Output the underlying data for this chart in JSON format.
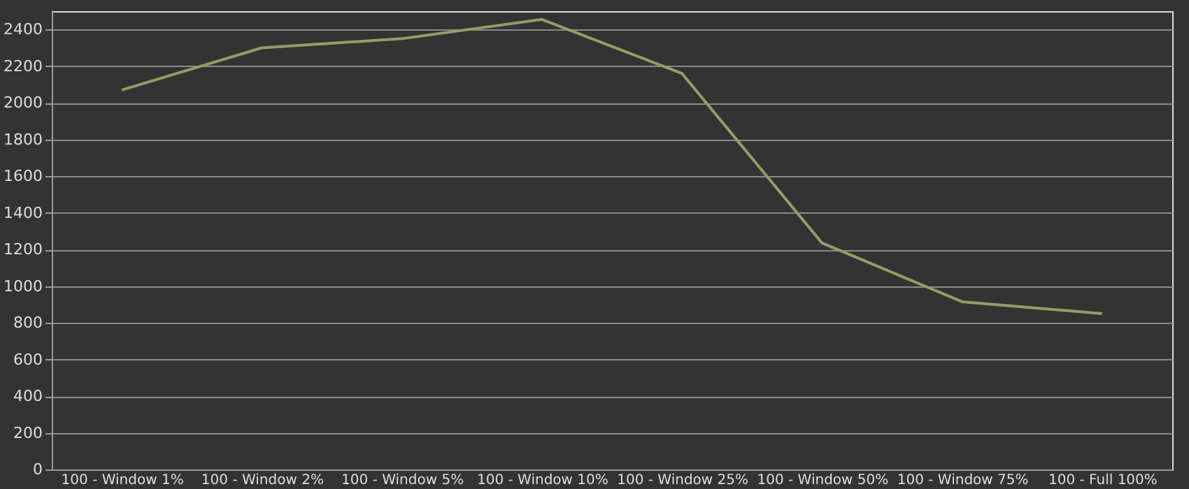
{
  "chart_data": {
    "type": "line",
    "categories": [
      "100 - Window  1%",
      "100 - Window  2%",
      "100 - Window  5%",
      "100 - Window 10%",
      "100 - Window 25%",
      "100 - Window 50%",
      "100 - Window 75%",
      "100 - Full  100%"
    ],
    "series": [
      {
        "color": "#9a9a68",
        "values": [
          2070,
          2300,
          2350,
          2455,
          2160,
          1235,
          915,
          850
        ]
      }
    ],
    "ylim": [
      0,
      2500
    ],
    "yticks": [
      0,
      200,
      400,
      600,
      800,
      1000,
      1200,
      1400,
      1600,
      1800,
      2000,
      2200,
      2400
    ],
    "grid": "y",
    "marker": "none",
    "line_style": "solid"
  }
}
